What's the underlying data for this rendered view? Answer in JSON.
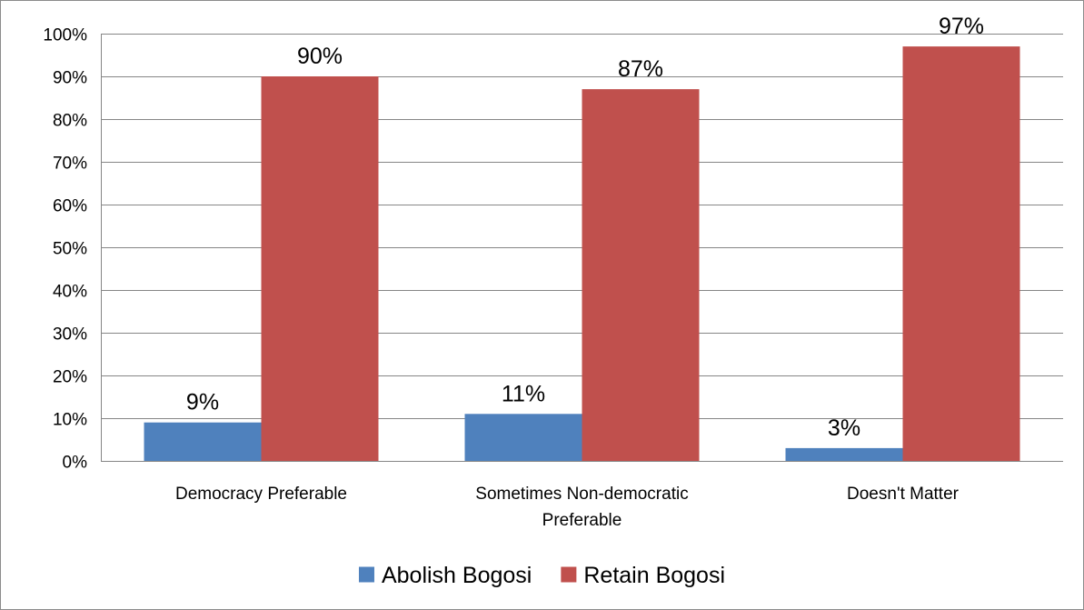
{
  "chart_data": {
    "type": "bar",
    "categories": [
      [
        "Democracy Preferable"
      ],
      [
        "Sometimes Non-democratic",
        "Preferable"
      ],
      [
        "Doesn't Matter"
      ]
    ],
    "series": [
      {
        "name": "Abolish Bogosi",
        "color": "#4f81bd",
        "values": [
          9,
          11,
          3
        ],
        "labels": [
          "9%",
          "11%",
          "3%"
        ]
      },
      {
        "name": "Retain Bogosi",
        "color": "#c0504d",
        "values": [
          90,
          87,
          97
        ],
        "labels": [
          "90%",
          "87%",
          "97%"
        ]
      }
    ],
    "ylim": [
      0,
      100
    ],
    "yticks": [
      "0%",
      "10%",
      "20%",
      "30%",
      "40%",
      "50%",
      "60%",
      "70%",
      "80%",
      "90%",
      "100%"
    ],
    "grid": true,
    "legend": "bottom"
  }
}
